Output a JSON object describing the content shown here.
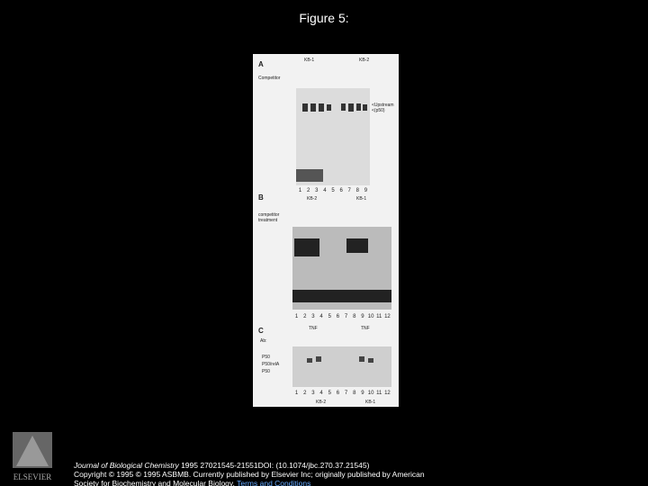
{
  "slide": {
    "title": "Figure 5:"
  },
  "figure": {
    "panel_a": {
      "letter": "A",
      "cell_lines": [
        "KB-1",
        "KB-2"
      ],
      "row_label": "Competitor",
      "band_labels": [
        "<Upstream",
        "<(p50)"
      ],
      "lanes": [
        "1",
        "2",
        "3",
        "4",
        "5",
        "6",
        "7",
        "8",
        "9"
      ]
    },
    "panel_b": {
      "letter": "B",
      "cell_lines": [
        "KB-2",
        "KB-1"
      ],
      "row_labels": [
        "competitor",
        "treatment"
      ],
      "lanes": [
        "1",
        "2",
        "3",
        "4",
        "5",
        "6",
        "7",
        "8",
        "9",
        "10",
        "11",
        "12"
      ]
    },
    "panel_c": {
      "letter": "C",
      "row_label": "Ab:",
      "treatments": [
        "TNF",
        "TNF"
      ],
      "band_labels": [
        "P50",
        "P50/relA",
        "P50"
      ],
      "lanes": [
        "1",
        "2",
        "3",
        "4",
        "5",
        "6",
        "7",
        "8",
        "9",
        "10",
        "11",
        "12"
      ],
      "cell_lines": [
        "KB-2",
        "KB-1"
      ]
    }
  },
  "footer": {
    "journal": "Journal of Biological Chemistry",
    "citation": " 1995 27021545-21551DOI: (10.1074/jbc.270.37.21545)",
    "copyright_1": "Copyright © 1995 © 1995 ASBMB. Currently published by Elsevier Inc; originally published by American",
    "copyright_2": "Society for Biochemistry and Molecular Biology. ",
    "link": "Terms and Conditions"
  },
  "logo": {
    "text": "ELSEVIER"
  }
}
